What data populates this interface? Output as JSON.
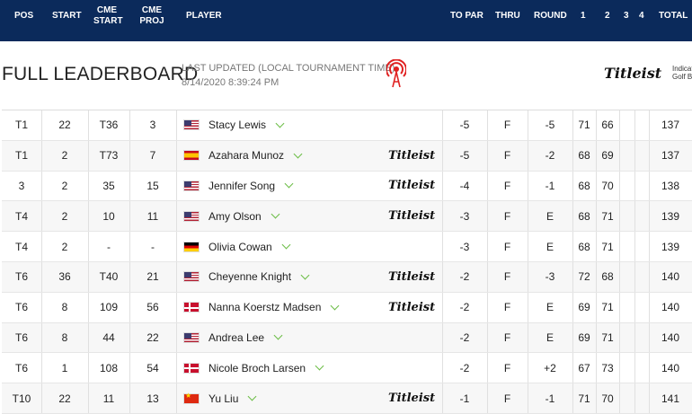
{
  "columns": {
    "pos": "POS",
    "start": "START",
    "cme_start": "CME START",
    "cme_proj": "CME PROJ",
    "player": "PLAYER",
    "to_par": "TO PAR",
    "thru": "THRU",
    "round": "ROUND",
    "r1": "1",
    "r2": "2",
    "r3": "3",
    "r4": "4",
    "total": "TOTAL"
  },
  "page": {
    "title": "FULL LEADERBOARD",
    "updated_label": "LAST UPDATED (LOCAL TOURNAMENT TIME)",
    "updated_time": "8/14/2020 8:39:24 PM"
  },
  "sponsor": {
    "logo": "Titleist",
    "text": "Indicat Golf B"
  },
  "rows": [
    {
      "pos": "T1",
      "start": "22",
      "cme_start": "T36",
      "cme_proj": "3",
      "flag": "usa",
      "player": "Stacy Lewis",
      "titleist": false,
      "to_par": "-5",
      "thru": "F",
      "round": "-5",
      "r1": "71",
      "r2": "66",
      "total": "137"
    },
    {
      "pos": "T1",
      "start": "2",
      "cme_start": "T73",
      "cme_proj": "7",
      "flag": "esp",
      "player": "Azahara Munoz",
      "titleist": true,
      "to_par": "-5",
      "thru": "F",
      "round": "-2",
      "r1": "68",
      "r2": "69",
      "total": "137"
    },
    {
      "pos": "3",
      "start": "2",
      "cme_start": "35",
      "cme_proj": "15",
      "flag": "usa",
      "player": "Jennifer Song",
      "titleist": true,
      "to_par": "-4",
      "thru": "F",
      "round": "-1",
      "r1": "68",
      "r2": "70",
      "total": "138"
    },
    {
      "pos": "T4",
      "start": "2",
      "cme_start": "10",
      "cme_proj": "11",
      "flag": "usa",
      "player": "Amy Olson",
      "titleist": true,
      "to_par": "-3",
      "thru": "F",
      "round": "E",
      "r1": "68",
      "r2": "71",
      "total": "139"
    },
    {
      "pos": "T4",
      "start": "2",
      "cme_start": "-",
      "cme_proj": "-",
      "flag": "ger",
      "player": "Olivia Cowan",
      "titleist": false,
      "to_par": "-3",
      "thru": "F",
      "round": "E",
      "r1": "68",
      "r2": "71",
      "total": "139"
    },
    {
      "pos": "T6",
      "start": "36",
      "cme_start": "T40",
      "cme_proj": "21",
      "flag": "usa",
      "player": "Cheyenne Knight",
      "titleist": true,
      "to_par": "-2",
      "thru": "F",
      "round": "-3",
      "r1": "72",
      "r2": "68",
      "total": "140"
    },
    {
      "pos": "T6",
      "start": "8",
      "cme_start": "109",
      "cme_proj": "56",
      "flag": "den",
      "player": "Nanna Koerstz Madsen",
      "titleist": true,
      "to_par": "-2",
      "thru": "F",
      "round": "E",
      "r1": "69",
      "r2": "71",
      "total": "140"
    },
    {
      "pos": "T6",
      "start": "8",
      "cme_start": "44",
      "cme_proj": "22",
      "flag": "usa",
      "player": "Andrea Lee",
      "titleist": false,
      "to_par": "-2",
      "thru": "F",
      "round": "E",
      "r1": "69",
      "r2": "71",
      "total": "140"
    },
    {
      "pos": "T6",
      "start": "1",
      "cme_start": "108",
      "cme_proj": "54",
      "flag": "den",
      "player": "Nicole Broch Larsen",
      "titleist": false,
      "to_par": "-2",
      "thru": "F",
      "round": "+2",
      "r1": "67",
      "r2": "73",
      "total": "140"
    },
    {
      "pos": "T10",
      "start": "22",
      "cme_start": "11",
      "cme_proj": "13",
      "flag": "chn",
      "player": "Yu Liu",
      "titleist": true,
      "to_par": "-1",
      "thru": "F",
      "round": "-1",
      "r1": "71",
      "r2": "70",
      "total": "141"
    }
  ]
}
